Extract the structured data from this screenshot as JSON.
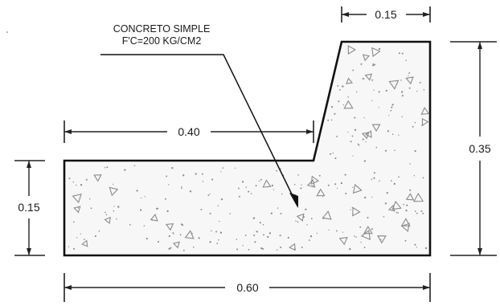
{
  "material_note": {
    "line1": "CONCRETO SIMPLE",
    "line2": "F'C=200 KG/CM2"
  },
  "dimensions": {
    "top_width": "0.15",
    "step_width": "0.40",
    "total_width": "0.60",
    "total_height": "0.35",
    "base_height": "0.15"
  },
  "colors": {
    "outline": "#111111",
    "hatch": "#8a8a8a",
    "fill": "#f7f7f7"
  }
}
